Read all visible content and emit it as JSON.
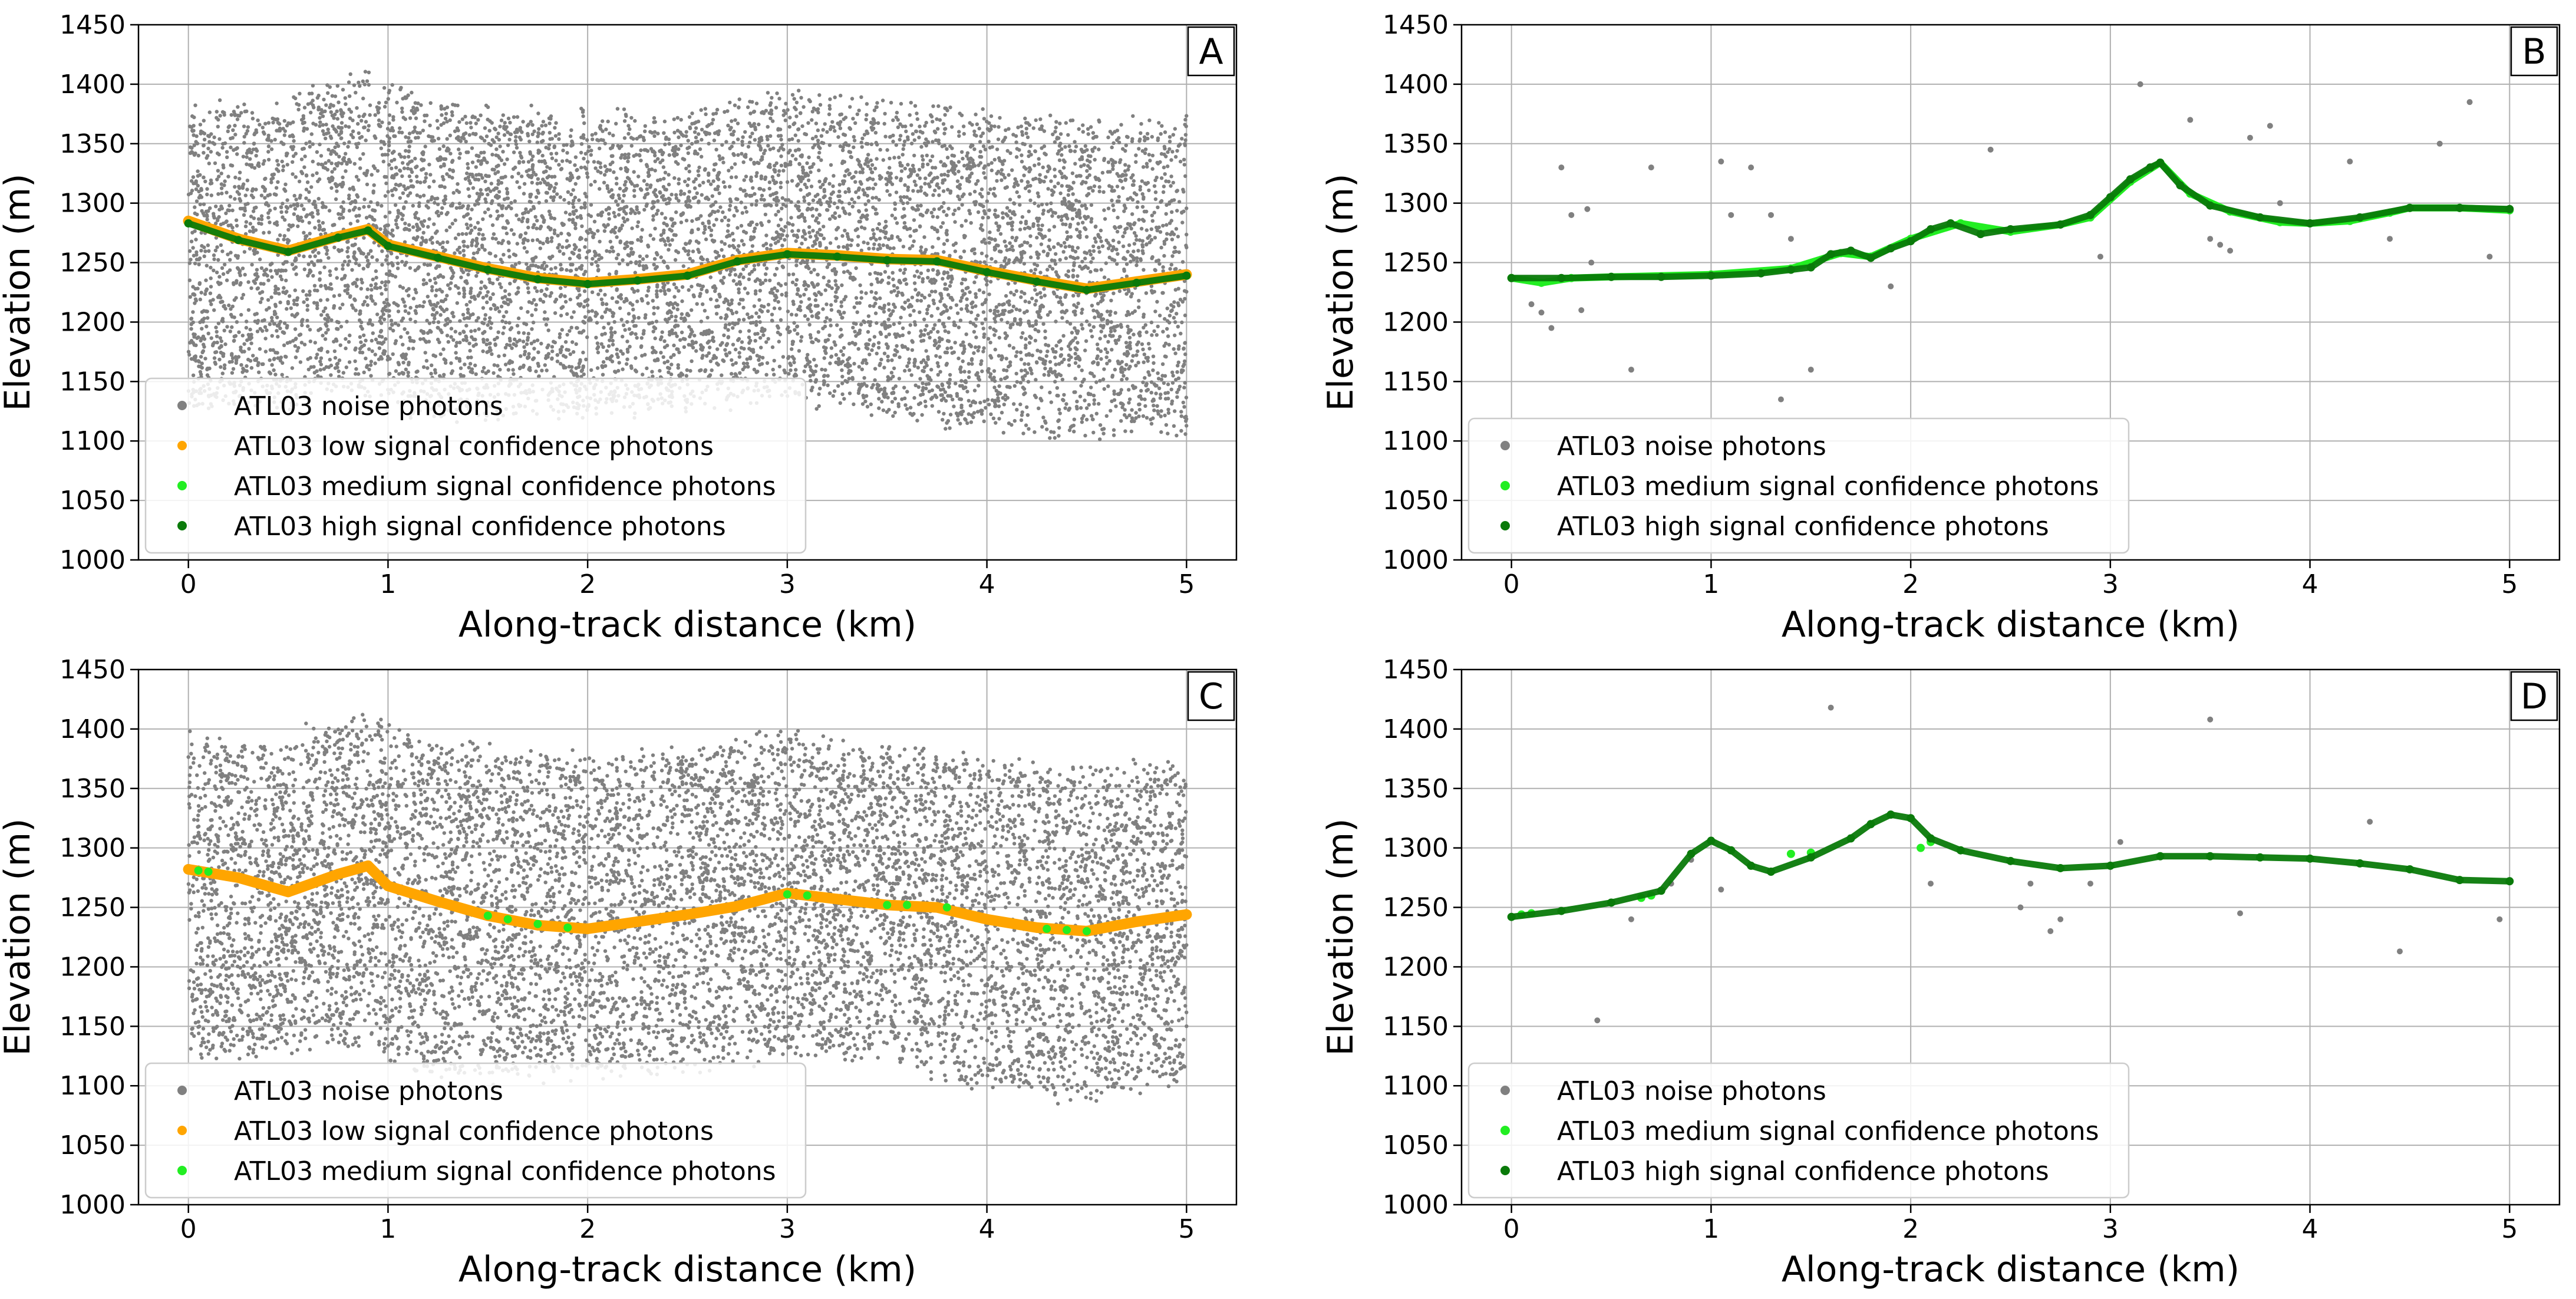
{
  "chart_data": [
    {
      "panel_label": "A",
      "type": "scatter",
      "xlabel": "Along-track distance (km)",
      "ylabel": "Elevation (m)",
      "xlim": [
        -0.25,
        5.25
      ],
      "ylim": [
        1000,
        1450
      ],
      "xticks": [
        0,
        1,
        2,
        3,
        4,
        5
      ],
      "yticks": [
        1000,
        1050,
        1100,
        1150,
        1200,
        1250,
        1300,
        1350,
        1400,
        1450
      ],
      "grid": true,
      "legend": "lower-left",
      "noise_envelope": {
        "x": [
          0,
          0.5,
          0.55,
          0.9,
          1.0,
          1.2,
          1.5,
          2.0,
          2.5,
          3.0,
          3.5,
          4.0,
          4.5,
          5.0
        ],
        "top": [
          1380,
          1380,
          1395,
          1405,
          1400,
          1385,
          1375,
          1370,
          1375,
          1390,
          1380,
          1370,
          1365,
          1365
        ],
        "bottom": [
          1130,
          1130,
          1135,
          1140,
          1125,
          1125,
          1120,
          1125,
          1130,
          1140,
          1125,
          1110,
          1105,
          1110
        ]
      },
      "series": [
        {
          "name": "ATL03 noise photons",
          "role": "noise",
          "color": "#808080"
        },
        {
          "name": "ATL03 low signal confidence photons",
          "role": "signal",
          "color": "#ffa500",
          "x": [
            0,
            0.25,
            0.5,
            0.75,
            0.9,
            1.0,
            1.25,
            1.5,
            1.75,
            2.0,
            2.25,
            2.5,
            2.75,
            3.0,
            3.25,
            3.5,
            3.75,
            4.0,
            4.25,
            4.5,
            4.75,
            5.0
          ],
          "y": [
            1285,
            1270,
            1260,
            1272,
            1278,
            1265,
            1255,
            1245,
            1237,
            1233,
            1236,
            1240,
            1252,
            1258,
            1256,
            1253,
            1252,
            1243,
            1235,
            1228,
            1234,
            1240
          ]
        },
        {
          "name": "ATL03 medium signal confidence photons",
          "role": "signal",
          "color": "#22ee22",
          "x": [
            0,
            0.25,
            0.5,
            0.75,
            0.9,
            1.0,
            1.25,
            1.5,
            1.75,
            2.0,
            2.25,
            2.5,
            2.75,
            3.0,
            3.25,
            3.5,
            3.75,
            4.0,
            4.25,
            4.5,
            4.75,
            5.0
          ],
          "y": [
            1283,
            1269,
            1259,
            1271,
            1277,
            1264,
            1254,
            1244,
            1236,
            1232,
            1235,
            1239,
            1251,
            1257,
            1255,
            1252,
            1251,
            1242,
            1234,
            1227,
            1233,
            1239
          ]
        },
        {
          "name": "ATL03 high signal confidence photons",
          "role": "signal",
          "color": "#0a7a0a",
          "x": [
            0,
            0.25,
            0.5,
            0.75,
            0.9,
            1.0,
            1.25,
            1.5,
            1.75,
            2.0,
            2.25,
            2.5,
            2.75,
            3.0,
            3.25,
            3.5,
            3.75,
            4.0,
            4.25,
            4.5,
            4.75,
            5.0
          ],
          "y": [
            1283,
            1269,
            1259,
            1271,
            1277,
            1264,
            1254,
            1244,
            1236,
            1232,
            1235,
            1239,
            1251,
            1257,
            1255,
            1252,
            1251,
            1242,
            1234,
            1227,
            1233,
            1239
          ]
        }
      ]
    },
    {
      "panel_label": "B",
      "type": "scatter",
      "xlabel": "Along-track distance (km)",
      "ylabel": "Elevation (m)",
      "xlim": [
        -0.25,
        5.25
      ],
      "ylim": [
        1000,
        1450
      ],
      "xticks": [
        0,
        1,
        2,
        3,
        4,
        5
      ],
      "yticks": [
        1000,
        1050,
        1100,
        1150,
        1200,
        1250,
        1300,
        1350,
        1400,
        1450
      ],
      "grid": true,
      "legend": "lower-left",
      "series": [
        {
          "name": "ATL03 noise photons",
          "role": "noise",
          "color": "#808080",
          "x": [
            0.1,
            0.15,
            0.2,
            0.25,
            0.3,
            0.35,
            0.38,
            0.4,
            0.6,
            0.7,
            1.05,
            1.1,
            1.2,
            1.3,
            1.35,
            1.4,
            1.5,
            1.9,
            2.4,
            2.95,
            3.15,
            3.4,
            3.5,
            3.55,
            3.6,
            3.7,
            3.8,
            3.85,
            4.2,
            4.4,
            4.65,
            4.8,
            4.9
          ],
          "y": [
            1215,
            1208,
            1195,
            1330,
            1290,
            1210,
            1295,
            1250,
            1160,
            1330,
            1335,
            1290,
            1330,
            1290,
            1135,
            1270,
            1160,
            1230,
            1345,
            1255,
            1400,
            1370,
            1270,
            1265,
            1260,
            1355,
            1365,
            1300,
            1335,
            1270,
            1350,
            1385,
            1255
          ]
        },
        {
          "name": "ATL03 medium signal confidence photons",
          "role": "signal",
          "color": "#22ee22",
          "x": [
            0,
            0.15,
            0.3,
            0.5,
            1.0,
            1.4,
            1.65,
            1.8,
            2.0,
            2.25,
            2.5,
            2.75,
            2.9,
            3.1,
            3.25,
            3.4,
            3.6,
            3.85,
            4.0,
            4.2,
            4.4,
            4.5,
            4.75,
            5.0
          ],
          "y": [
            1237,
            1233,
            1237,
            1238,
            1240,
            1245,
            1258,
            1255,
            1270,
            1283,
            1276,
            1282,
            1288,
            1318,
            1334,
            1308,
            1293,
            1284,
            1283,
            1285,
            1292,
            1296,
            1296,
            1294
          ]
        },
        {
          "name": "ATL03 high signal confidence photons",
          "role": "signal",
          "color": "#0a7a0a",
          "x": [
            0,
            0.25,
            0.5,
            0.75,
            1.0,
            1.25,
            1.4,
            1.5,
            1.6,
            1.7,
            1.8,
            1.9,
            2.0,
            2.1,
            2.2,
            2.35,
            2.5,
            2.75,
            2.9,
            3.0,
            3.1,
            3.2,
            3.25,
            3.35,
            3.5,
            3.75,
            4.0,
            4.25,
            4.5,
            4.75,
            5.0
          ],
          "y": [
            1237,
            1237,
            1238,
            1238,
            1239,
            1241,
            1244,
            1246,
            1257,
            1260,
            1254,
            1262,
            1268,
            1278,
            1283,
            1274,
            1278,
            1282,
            1290,
            1305,
            1320,
            1330,
            1334,
            1315,
            1298,
            1288,
            1283,
            1288,
            1296,
            1296,
            1295
          ]
        }
      ]
    },
    {
      "panel_label": "C",
      "type": "scatter",
      "xlabel": "Along-track distance (km)",
      "ylabel": "Elevation (m)",
      "xlim": [
        -0.25,
        5.25
      ],
      "ylim": [
        1000,
        1450
      ],
      "xticks": [
        0,
        1,
        2,
        3,
        4,
        5
      ],
      "yticks": [
        1000,
        1050,
        1100,
        1150,
        1200,
        1250,
        1300,
        1350,
        1400,
        1450
      ],
      "grid": true,
      "legend": "lower-left",
      "noise_envelope": {
        "x": [
          0,
          0.5,
          0.6,
          0.9,
          1.0,
          1.2,
          1.5,
          2.0,
          2.5,
          2.9,
          3.0,
          3.5,
          4.0,
          4.5,
          5.0
        ],
        "top": [
          1390,
          1380,
          1400,
          1410,
          1400,
          1385,
          1380,
          1375,
          1375,
          1395,
          1395,
          1380,
          1370,
          1365,
          1370
        ],
        "bottom": [
          1130,
          1130,
          1135,
          1140,
          1125,
          1115,
          1105,
          1110,
          1115,
          1125,
          1130,
          1125,
          1100,
          1090,
          1110
        ]
      },
      "series": [
        {
          "name": "ATL03 noise photons",
          "role": "noise",
          "color": "#808080"
        },
        {
          "name": "ATL03 low signal confidence photons",
          "role": "signal",
          "color": "#ffa500",
          "x": [
            0,
            0.25,
            0.5,
            0.75,
            0.9,
            1.0,
            1.25,
            1.5,
            1.75,
            2.0,
            2.25,
            2.5,
            2.75,
            3.0,
            3.25,
            3.5,
            3.75,
            4.0,
            4.25,
            4.5,
            4.75,
            5.0
          ],
          "y": [
            1282,
            1275,
            1263,
            1278,
            1285,
            1268,
            1255,
            1243,
            1235,
            1232,
            1238,
            1244,
            1251,
            1262,
            1257,
            1252,
            1250,
            1240,
            1233,
            1230,
            1238,
            1244
          ]
        },
        {
          "name": "ATL03 medium signal confidence photons",
          "role": "signal",
          "color": "#22ee22",
          "x": [
            0.05,
            0.1,
            1.5,
            1.6,
            1.75,
            1.9,
            3.0,
            3.1,
            3.5,
            3.6,
            3.8,
            4.3,
            4.4,
            4.5
          ],
          "y": [
            1281,
            1280,
            1243,
            1240,
            1236,
            1233,
            1261,
            1260,
            1252,
            1252,
            1250,
            1232,
            1231,
            1230
          ]
        }
      ]
    },
    {
      "panel_label": "D",
      "type": "scatter",
      "xlabel": "Along-track distance (km)",
      "ylabel": "Elevation (m)",
      "xlim": [
        -0.25,
        5.25
      ],
      "ylim": [
        1000,
        1450
      ],
      "xticks": [
        0,
        1,
        2,
        3,
        4,
        5
      ],
      "yticks": [
        1000,
        1050,
        1100,
        1150,
        1200,
        1250,
        1300,
        1350,
        1400,
        1450
      ],
      "grid": true,
      "legend": "lower-left",
      "series": [
        {
          "name": "ATL03 noise photons",
          "role": "noise",
          "color": "#808080",
          "x": [
            0.43,
            0.6,
            0.75,
            0.8,
            0.9,
            1.05,
            1.6,
            2.1,
            2.55,
            2.6,
            2.7,
            2.75,
            2.9,
            3.05,
            3.5,
            3.65,
            4.3,
            4.45,
            4.95
          ],
          "y": [
            1155,
            1240,
            1265,
            1270,
            1290,
            1265,
            1418,
            1270,
            1250,
            1270,
            1230,
            1240,
            1270,
            1305,
            1408,
            1245,
            1322,
            1213,
            1240
          ]
        },
        {
          "name": "ATL03 medium signal confidence photons",
          "role": "signal",
          "color": "#22ee22",
          "x": [
            0.05,
            0.1,
            0.65,
            0.7,
            1.4,
            1.5,
            2.05,
            2.1
          ],
          "y": [
            1244,
            1245,
            1258,
            1260,
            1295,
            1296,
            1300,
            1305
          ]
        },
        {
          "name": "ATL03 high signal confidence photons",
          "role": "signal",
          "color": "#0a7a0a",
          "x": [
            0,
            0.25,
            0.5,
            0.75,
            0.9,
            1.0,
            1.1,
            1.2,
            1.3,
            1.5,
            1.7,
            1.8,
            1.9,
            2.0,
            2.1,
            2.25,
            2.5,
            2.75,
            3.0,
            3.25,
            3.5,
            3.75,
            4.0,
            4.25,
            4.5,
            4.75,
            5.0
          ],
          "y": [
            1242,
            1247,
            1254,
            1264,
            1295,
            1306,
            1298,
            1285,
            1280,
            1292,
            1308,
            1320,
            1328,
            1325,
            1308,
            1298,
            1289,
            1283,
            1285,
            1293,
            1293,
            1292,
            1291,
            1287,
            1282,
            1273,
            1272
          ]
        }
      ]
    }
  ]
}
